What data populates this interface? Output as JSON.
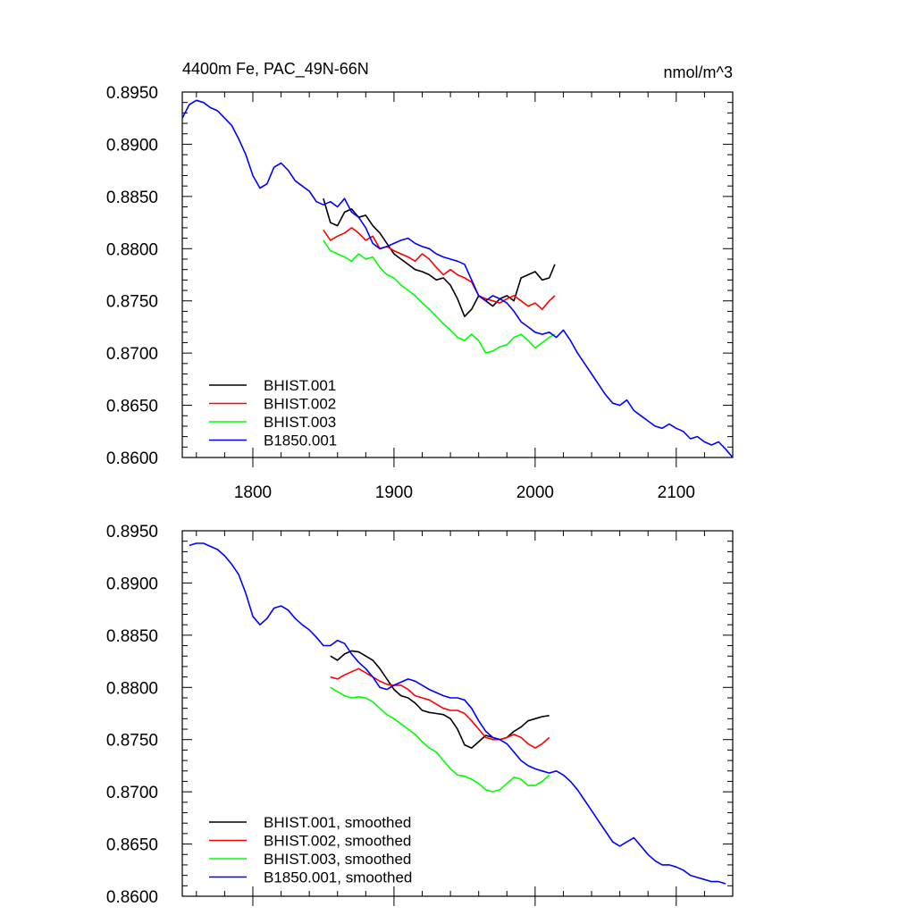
{
  "chart_data": [
    {
      "type": "line",
      "title": "4400m Fe, PAC_49N-66N",
      "units": "nmol/m^3",
      "xlim": [
        1750,
        2140
      ],
      "ylim": [
        0.86,
        0.895
      ],
      "xticks": [
        1800,
        1900,
        2000,
        2100
      ],
      "xtick_labels": [
        "1800",
        "1900",
        "2000",
        "2100"
      ],
      "yticks": [
        0.86,
        0.865,
        0.87,
        0.875,
        0.88,
        0.885,
        0.89,
        0.895
      ],
      "ytick_labels": [
        "0.8600",
        "0.8650",
        "0.8700",
        "0.8750",
        "0.8800",
        "0.8850",
        "0.8900",
        "0.8950"
      ],
      "grid": false,
      "legend_position": "bottom-left",
      "colors": {
        "BHIST.001": "#000000",
        "BHIST.002": "#ff0000",
        "BHIST.003": "#00ff00",
        "B1850.001": "#0000ff"
      },
      "series": [
        {
          "name": "BHIST.001",
          "color": "#000000",
          "x": [
            1850,
            1855,
            1860,
            1865,
            1870,
            1875,
            1880,
            1885,
            1890,
            1895,
            1900,
            1905,
            1910,
            1915,
            1920,
            1925,
            1930,
            1935,
            1940,
            1945,
            1950,
            1955,
            1960,
            1965,
            1970,
            1975,
            1980,
            1985,
            1990,
            1995,
            2000,
            2005,
            2010,
            2014
          ],
          "y": [
            0.8848,
            0.8825,
            0.8822,
            0.8835,
            0.8838,
            0.883,
            0.8832,
            0.8822,
            0.8815,
            0.8805,
            0.8795,
            0.879,
            0.8785,
            0.878,
            0.8778,
            0.8775,
            0.877,
            0.8772,
            0.8765,
            0.8752,
            0.8735,
            0.8742,
            0.8755,
            0.875,
            0.8745,
            0.8752,
            0.8755,
            0.875,
            0.8772,
            0.8775,
            0.8778,
            0.877,
            0.8772,
            0.8785
          ]
        },
        {
          "name": "BHIST.002",
          "color": "#ff0000",
          "x": [
            1850,
            1855,
            1860,
            1865,
            1870,
            1875,
            1880,
            1885,
            1890,
            1895,
            1900,
            1905,
            1910,
            1915,
            1920,
            1925,
            1930,
            1935,
            1940,
            1945,
            1950,
            1955,
            1960,
            1965,
            1970,
            1975,
            1980,
            1985,
            1990,
            1995,
            2000,
            2005,
            2010,
            2014
          ],
          "y": [
            0.8818,
            0.8808,
            0.8812,
            0.8815,
            0.882,
            0.8815,
            0.8808,
            0.8812,
            0.88,
            0.8802,
            0.8798,
            0.8795,
            0.8792,
            0.8788,
            0.8795,
            0.879,
            0.8782,
            0.8775,
            0.878,
            0.8775,
            0.8772,
            0.8768,
            0.8755,
            0.8752,
            0.875,
            0.8748,
            0.8752,
            0.8755,
            0.875,
            0.8745,
            0.8748,
            0.8742,
            0.875,
            0.8755
          ]
        },
        {
          "name": "BHIST.003",
          "color": "#00ff00",
          "x": [
            1850,
            1855,
            1860,
            1865,
            1870,
            1875,
            1880,
            1885,
            1890,
            1895,
            1900,
            1905,
            1910,
            1915,
            1920,
            1925,
            1930,
            1935,
            1940,
            1945,
            1950,
            1955,
            1960,
            1965,
            1970,
            1975,
            1980,
            1985,
            1990,
            1995,
            2000,
            2005,
            2010,
            2014
          ],
          "y": [
            0.8808,
            0.8798,
            0.8795,
            0.8792,
            0.8788,
            0.8795,
            0.879,
            0.8792,
            0.8782,
            0.8775,
            0.8772,
            0.8765,
            0.876,
            0.8755,
            0.8748,
            0.8742,
            0.8735,
            0.8728,
            0.8722,
            0.8715,
            0.8712,
            0.8718,
            0.8712,
            0.87,
            0.8702,
            0.8706,
            0.8708,
            0.8715,
            0.8718,
            0.8712,
            0.8705,
            0.871,
            0.8715,
            0.8718
          ]
        },
        {
          "name": "B1850.001",
          "color": "#0000ff",
          "x": [
            1750,
            1755,
            1760,
            1765,
            1770,
            1775,
            1780,
            1785,
            1790,
            1795,
            1800,
            1805,
            1810,
            1815,
            1820,
            1825,
            1830,
            1835,
            1840,
            1845,
            1850,
            1855,
            1860,
            1865,
            1870,
            1875,
            1880,
            1885,
            1890,
            1895,
            1900,
            1905,
            1910,
            1915,
            1920,
            1925,
            1930,
            1935,
            1940,
            1945,
            1950,
            1955,
            1960,
            1965,
            1970,
            1975,
            1980,
            1985,
            1990,
            1995,
            2000,
            2005,
            2010,
            2015,
            2020,
            2025,
            2030,
            2035,
            2040,
            2045,
            2050,
            2055,
            2060,
            2065,
            2070,
            2075,
            2080,
            2085,
            2090,
            2095,
            2100,
            2105,
            2110,
            2115,
            2120,
            2125,
            2130,
            2135,
            2140
          ],
          "y": [
            0.8925,
            0.8938,
            0.8942,
            0.894,
            0.8935,
            0.8932,
            0.8925,
            0.8918,
            0.8905,
            0.889,
            0.887,
            0.8858,
            0.8862,
            0.8878,
            0.8882,
            0.8875,
            0.8865,
            0.886,
            0.8855,
            0.8845,
            0.8842,
            0.8845,
            0.884,
            0.8848,
            0.8835,
            0.883,
            0.882,
            0.8805,
            0.88,
            0.8802,
            0.8805,
            0.8808,
            0.881,
            0.8805,
            0.8802,
            0.88,
            0.8795,
            0.8792,
            0.879,
            0.8788,
            0.8785,
            0.877,
            0.8755,
            0.875,
            0.8755,
            0.8752,
            0.8748,
            0.874,
            0.873,
            0.8725,
            0.872,
            0.8718,
            0.872,
            0.8715,
            0.8722,
            0.8712,
            0.87,
            0.869,
            0.868,
            0.867,
            0.866,
            0.8652,
            0.865,
            0.8655,
            0.8645,
            0.864,
            0.8635,
            0.863,
            0.8628,
            0.8632,
            0.8628,
            0.8625,
            0.8618,
            0.862,
            0.8615,
            0.8612,
            0.8615,
            0.8608,
            0.86
          ]
        }
      ]
    },
    {
      "type": "line",
      "xlim": [
        1750,
        2140
      ],
      "ylim": [
        0.86,
        0.895
      ],
      "xticks": [
        1800,
        1900,
        2000,
        2100
      ],
      "yticks": [
        0.86,
        0.865,
        0.87,
        0.875,
        0.88,
        0.885,
        0.89,
        0.895
      ],
      "ytick_labels": [
        "0.8600",
        "0.8650",
        "0.8700",
        "0.8750",
        "0.8800",
        "0.8850",
        "0.8900",
        "0.8950"
      ],
      "grid": false,
      "legend_position": "bottom-left",
      "series": [
        {
          "name": "BHIST.001, smoothed",
          "color": "#000000",
          "x": [
            1855,
            1860,
            1865,
            1870,
            1875,
            1880,
            1885,
            1890,
            1895,
            1900,
            1905,
            1910,
            1915,
            1920,
            1925,
            1930,
            1935,
            1940,
            1945,
            1950,
            1955,
            1960,
            1965,
            1970,
            1975,
            1980,
            1985,
            1990,
            1995,
            2000,
            2005,
            2010
          ],
          "y": [
            0.883,
            0.8826,
            0.8832,
            0.8835,
            0.8834,
            0.883,
            0.8826,
            0.8818,
            0.8808,
            0.8798,
            0.8792,
            0.879,
            0.8785,
            0.8778,
            0.8776,
            0.8775,
            0.8774,
            0.877,
            0.876,
            0.8745,
            0.8742,
            0.8748,
            0.8754,
            0.8752,
            0.875,
            0.8752,
            0.8758,
            0.8762,
            0.8768,
            0.877,
            0.8772,
            0.8773
          ]
        },
        {
          "name": "BHIST.002, smoothed",
          "color": "#ff0000",
          "x": [
            1855,
            1860,
            1865,
            1870,
            1875,
            1880,
            1885,
            1890,
            1895,
            1900,
            1905,
            1910,
            1915,
            1920,
            1925,
            1930,
            1935,
            1940,
            1945,
            1950,
            1955,
            1960,
            1965,
            1970,
            1975,
            1980,
            1985,
            1990,
            1995,
            2000,
            2005,
            2010
          ],
          "y": [
            0.881,
            0.8808,
            0.8812,
            0.8815,
            0.8818,
            0.8814,
            0.881,
            0.8806,
            0.8803,
            0.8802,
            0.8802,
            0.8798,
            0.8792,
            0.879,
            0.8788,
            0.8784,
            0.878,
            0.8778,
            0.8778,
            0.8775,
            0.8768,
            0.876,
            0.8752,
            0.875,
            0.875,
            0.8752,
            0.8755,
            0.8752,
            0.8746,
            0.8742,
            0.8746,
            0.8752
          ]
        },
        {
          "name": "BHIST.003, smoothed",
          "color": "#00ff00",
          "x": [
            1855,
            1860,
            1865,
            1870,
            1875,
            1880,
            1885,
            1890,
            1895,
            1900,
            1905,
            1910,
            1915,
            1920,
            1925,
            1930,
            1935,
            1940,
            1945,
            1950,
            1955,
            1960,
            1965,
            1970,
            1975,
            1980,
            1985,
            1990,
            1995,
            2000,
            2005,
            2010
          ],
          "y": [
            0.88,
            0.8796,
            0.8792,
            0.879,
            0.8791,
            0.879,
            0.8786,
            0.878,
            0.8774,
            0.877,
            0.8765,
            0.876,
            0.8755,
            0.8748,
            0.8742,
            0.8738,
            0.873,
            0.8722,
            0.8716,
            0.8715,
            0.8712,
            0.8708,
            0.8702,
            0.87,
            0.8702,
            0.8708,
            0.8714,
            0.8712,
            0.8706,
            0.8706,
            0.871,
            0.8716
          ]
        },
        {
          "name": "B1850.001, smoothed",
          "color": "#0000ff",
          "x": [
            1755,
            1760,
            1765,
            1770,
            1775,
            1780,
            1785,
            1790,
            1795,
            1800,
            1805,
            1810,
            1815,
            1820,
            1825,
            1830,
            1835,
            1840,
            1845,
            1850,
            1855,
            1860,
            1865,
            1870,
            1875,
            1880,
            1885,
            1890,
            1895,
            1900,
            1905,
            1910,
            1915,
            1920,
            1925,
            1930,
            1935,
            1940,
            1945,
            1950,
            1955,
            1960,
            1965,
            1970,
            1975,
            1980,
            1985,
            1990,
            1995,
            2000,
            2005,
            2010,
            2015,
            2020,
            2025,
            2030,
            2035,
            2040,
            2045,
            2050,
            2055,
            2060,
            2065,
            2070,
            2075,
            2080,
            2085,
            2090,
            2095,
            2100,
            2105,
            2110,
            2115,
            2120,
            2125,
            2130,
            2135
          ],
          "y": [
            0.8936,
            0.8938,
            0.8938,
            0.8935,
            0.8932,
            0.8926,
            0.8918,
            0.8908,
            0.889,
            0.8868,
            0.886,
            0.8866,
            0.8876,
            0.8878,
            0.8874,
            0.8866,
            0.886,
            0.8855,
            0.8848,
            0.884,
            0.884,
            0.8845,
            0.8842,
            0.8832,
            0.8824,
            0.8818,
            0.881,
            0.88,
            0.8798,
            0.8802,
            0.8805,
            0.8808,
            0.8806,
            0.8802,
            0.8798,
            0.8795,
            0.8792,
            0.879,
            0.879,
            0.8788,
            0.878,
            0.8768,
            0.8758,
            0.8752,
            0.875,
            0.8746,
            0.8738,
            0.873,
            0.8725,
            0.8722,
            0.872,
            0.8718,
            0.872,
            0.8716,
            0.871,
            0.8702,
            0.8692,
            0.8682,
            0.8672,
            0.8662,
            0.8652,
            0.8648,
            0.8652,
            0.8656,
            0.8648,
            0.864,
            0.8634,
            0.863,
            0.863,
            0.8628,
            0.8625,
            0.862,
            0.8618,
            0.8616,
            0.8614,
            0.8614,
            0.8612
          ]
        }
      ]
    }
  ]
}
